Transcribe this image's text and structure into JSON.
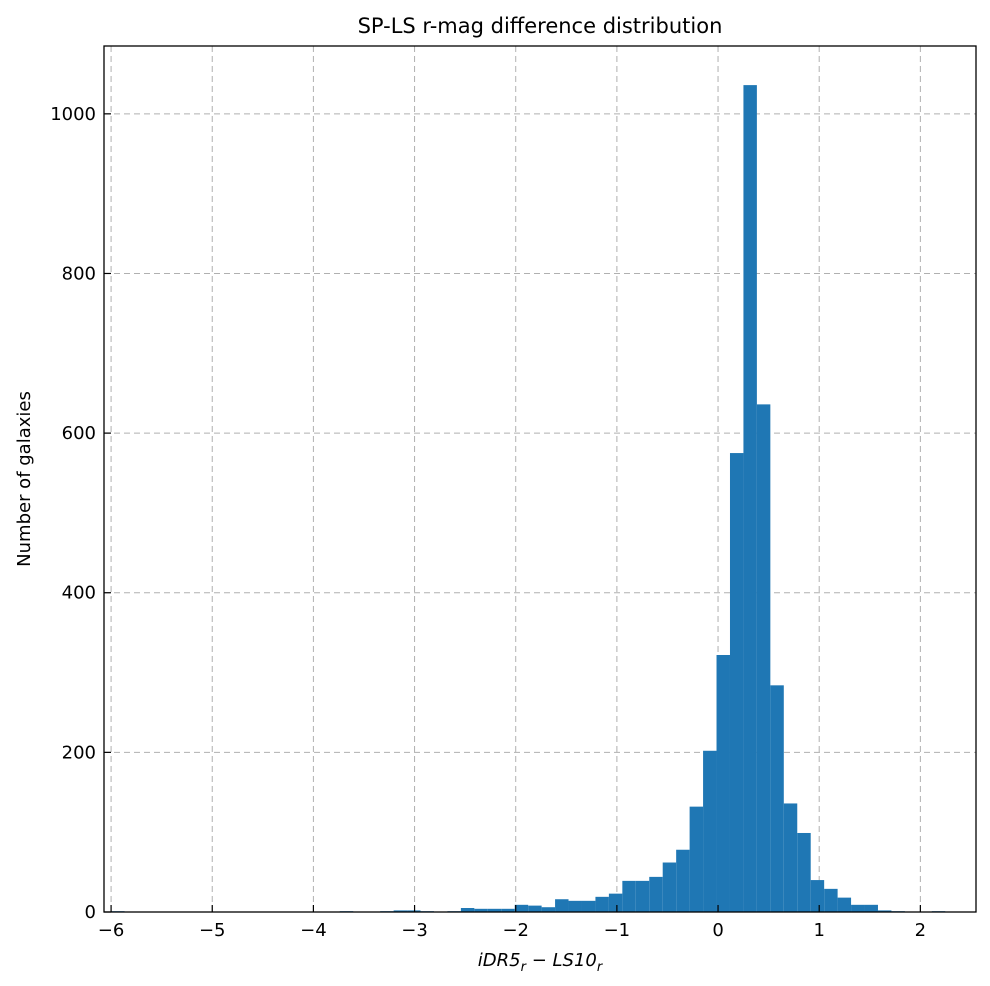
{
  "chart_data": {
    "type": "bar",
    "title": "SP-LS r-mag difference distribution",
    "xlabel": "iDR5_r - LS10_r",
    "xlabel_parts": {
      "a": "iDR5",
      "a_sub": "r",
      "op": " − ",
      "b": "LS10",
      "b_sub": "r"
    },
    "ylabel": "Number of galaxies",
    "xlim": [
      -6.07,
      2.55
    ],
    "ylim": [
      0,
      1085
    ],
    "xticks": [
      -6,
      -5,
      -4,
      -3,
      -2,
      -1,
      0,
      1,
      2
    ],
    "xtick_labels": [
      "−6",
      "−5",
      "−4",
      "−3",
      "−2",
      "−1",
      "0",
      "1",
      "2"
    ],
    "yticks": [
      0,
      200,
      400,
      600,
      800,
      1000
    ],
    "ytick_labels": [
      "0",
      "200",
      "400",
      "600",
      "800",
      "1000"
    ],
    "grid": true,
    "bar_color": "#1f77b4",
    "bin_width": 0.133,
    "bin_left_edges": [
      -6.0,
      -5.867,
      -5.734,
      -5.601,
      -5.468,
      -5.335,
      -5.202,
      -5.069,
      -4.936,
      -4.803,
      -4.67,
      -4.537,
      -4.404,
      -4.271,
      -4.138,
      -4.005,
      -3.872,
      -3.739,
      -3.606,
      -3.473,
      -3.34,
      -3.207,
      -3.074,
      -2.941,
      -2.808,
      -2.675,
      -2.542,
      -2.409,
      -2.276,
      -2.143,
      -2.01,
      -1.877,
      -1.744,
      -1.611,
      -1.478,
      -1.345,
      -1.212,
      -1.079,
      -0.946,
      -0.813,
      -0.68,
      -0.547,
      -0.414,
      -0.281,
      -0.148,
      -0.015,
      0.118,
      0.251,
      0.384,
      0.517,
      0.65,
      0.783,
      0.916,
      1.049,
      1.182,
      1.315,
      1.448,
      1.581,
      1.714,
      1.847,
      1.98,
      2.113
    ],
    "values": [
      1,
      0,
      0,
      0,
      0,
      0,
      0,
      0,
      0,
      0,
      0,
      0,
      0,
      0,
      0,
      0,
      0,
      1,
      0,
      0,
      1,
      2,
      2,
      1,
      0,
      1,
      5,
      4,
      4,
      4,
      9,
      8,
      6,
      16,
      14,
      14,
      19,
      23,
      39,
      39,
      44,
      62,
      78,
      132,
      202,
      322,
      575,
      1036,
      636,
      284,
      136,
      99,
      40,
      29,
      18,
      9,
      9,
      2,
      1,
      0,
      0,
      1
    ]
  }
}
